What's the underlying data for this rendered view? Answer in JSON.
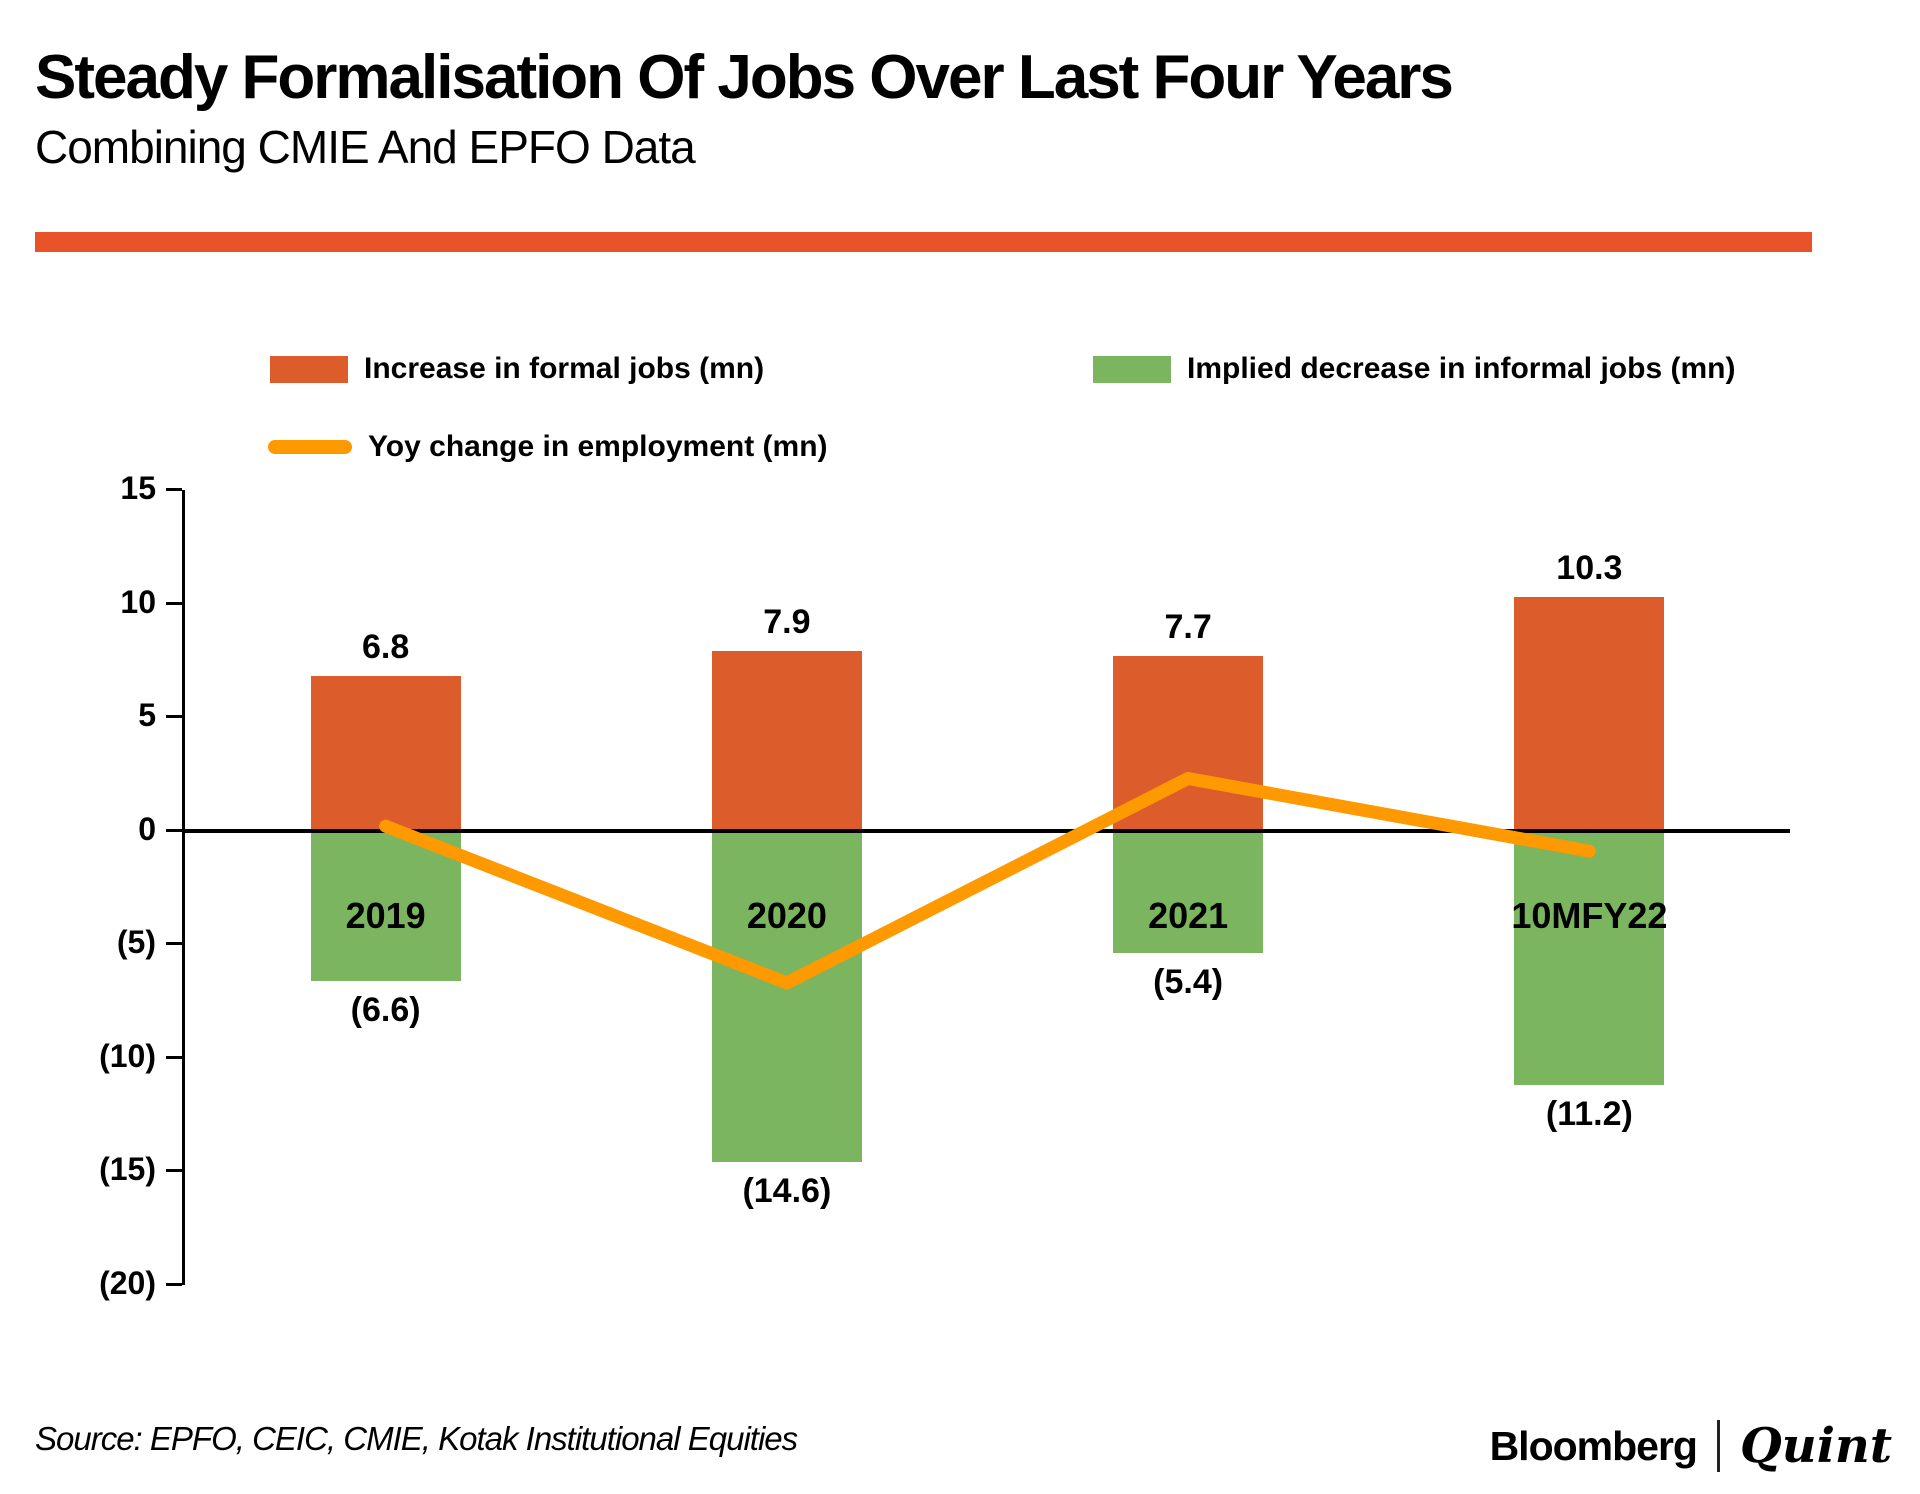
{
  "header": {
    "title": "Steady Formalisation Of Jobs Over Last Four Years",
    "subtitle": "Combining CMIE And EPFO Data",
    "divider_color": "#E8532A"
  },
  "legend": {
    "formal": {
      "label": "Increase in formal jobs (mn)",
      "color": "#DC5C2B"
    },
    "informal": {
      "label": "Implied decrease in informal jobs (mn)",
      "color": "#7CB55F"
    },
    "yoy": {
      "label": "Yoy change in employment (mn)",
      "color": "#FF9900"
    }
  },
  "chart_data": {
    "type": "bar",
    "categories": [
      "2019",
      "2020",
      "2021",
      "10MFY22"
    ],
    "series": [
      {
        "name": "Increase in formal jobs (mn)",
        "type": "bar",
        "color": "#DC5C2B",
        "values": [
          6.8,
          7.9,
          7.7,
          10.3
        ],
        "labels": [
          "6.8",
          "7.9",
          "7.7",
          "10.3"
        ]
      },
      {
        "name": "Implied decrease in informal jobs (mn)",
        "type": "bar",
        "color": "#7CB55F",
        "values": [
          -6.6,
          -14.6,
          -5.4,
          -11.2
        ],
        "labels": [
          "(6.6)",
          "(14.6)",
          "(5.4)",
          "(11.2)"
        ]
      },
      {
        "name": "Yoy change in employment (mn)",
        "type": "line",
        "color": "#FF9900",
        "values": [
          0.2,
          -6.7,
          2.3,
          -0.9
        ]
      }
    ],
    "yaxis": {
      "min": -20,
      "max": 15,
      "step": 5,
      "tick_labels": [
        "15",
        "10",
        "5",
        "0",
        "(5)",
        "(10)",
        "(15)",
        "(20)"
      ]
    },
    "grid": false,
    "legend_position": "top",
    "category_labels_inside_bars": true
  },
  "footer": {
    "source": "Source: EPFO, CEIC, CMIE, Kotak Institutional Equities",
    "brand": {
      "bloomberg": "Bloomberg",
      "separator": "|",
      "quint": "Quint"
    }
  }
}
